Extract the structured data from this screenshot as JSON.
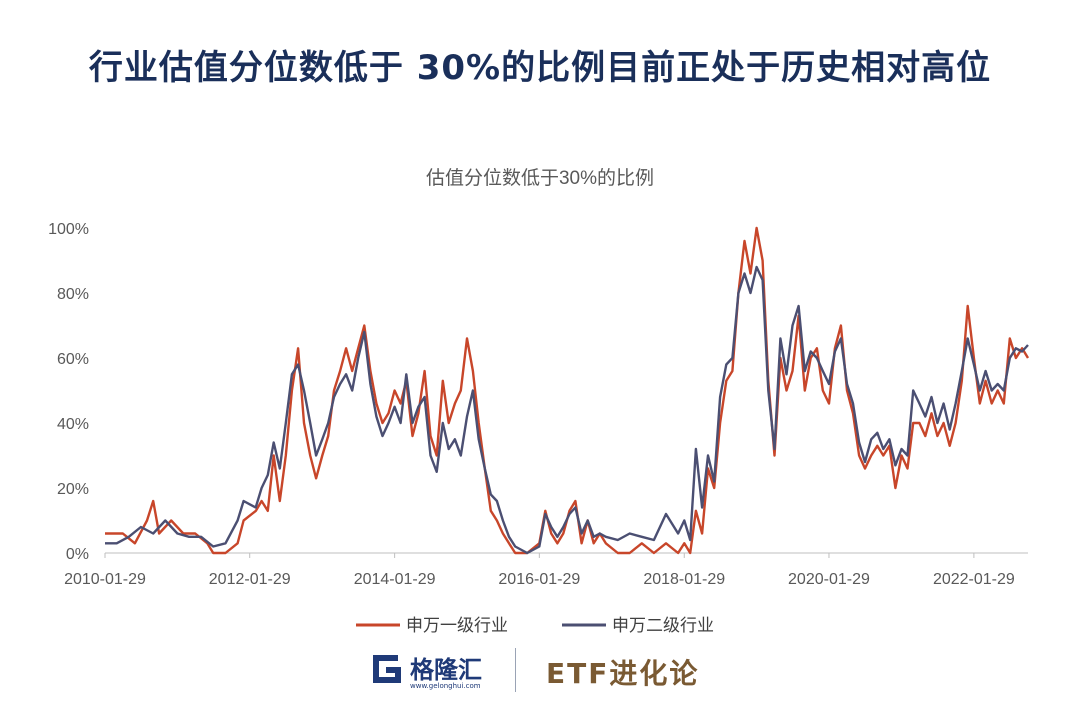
{
  "headline": "行业估值分位数低于 30%的比例目前正处于历史相对高位",
  "footer": {
    "logo_text": "格隆汇",
    "logo_url": "www.gelonghui.com",
    "brand": "ETF进化论"
  },
  "colors": {
    "series1": "#c8462a",
    "series2": "#4b4f72",
    "headline": "#1a2f5a"
  },
  "chart_data": {
    "type": "line",
    "title": "估值分位数低于30%的比例",
    "xlabel": "",
    "ylabel": "",
    "ylim": [
      0,
      100
    ],
    "y_ticks": [
      "0%",
      "20%",
      "40%",
      "60%",
      "80%",
      "100%"
    ],
    "x_ticks": [
      "2010-01-29",
      "2012-01-29",
      "2014-01-29",
      "2016-01-29",
      "2018-01-29",
      "2020-01-29",
      "2022-01-29"
    ],
    "xlim": [
      "2010-01-29",
      "2022-10-29"
    ],
    "grid": false,
    "legend_position": "bottom",
    "series": [
      {
        "name": "申万一级行业",
        "color": "#c8462a",
        "points": [
          [
            "2010-01-29",
            6
          ],
          [
            "2010-04-29",
            6
          ],
          [
            "2010-06-29",
            3
          ],
          [
            "2010-08-29",
            10
          ],
          [
            "2010-09-29",
            16
          ],
          [
            "2010-10-29",
            6
          ],
          [
            "2010-12-29",
            10
          ],
          [
            "2011-02-28",
            6
          ],
          [
            "2011-04-29",
            6
          ],
          [
            "2011-06-29",
            3
          ],
          [
            "2011-07-29",
            0
          ],
          [
            "2011-09-29",
            0
          ],
          [
            "2011-11-29",
            3
          ],
          [
            "2011-12-29",
            10
          ],
          [
            "2012-02-29",
            13
          ],
          [
            "2012-03-29",
            16
          ],
          [
            "2012-04-29",
            13
          ],
          [
            "2012-05-29",
            30
          ],
          [
            "2012-06-29",
            16
          ],
          [
            "2012-07-29",
            30
          ],
          [
            "2012-08-29",
            50
          ],
          [
            "2012-09-29",
            63
          ],
          [
            "2012-10-29",
            40
          ],
          [
            "2012-11-29",
            30
          ],
          [
            "2012-12-29",
            23
          ],
          [
            "2013-01-29",
            30
          ],
          [
            "2013-02-28",
            36
          ],
          [
            "2013-03-29",
            50
          ],
          [
            "2013-04-29",
            56
          ],
          [
            "2013-05-29",
            63
          ],
          [
            "2013-06-29",
            56
          ],
          [
            "2013-07-29",
            63
          ],
          [
            "2013-08-29",
            70
          ],
          [
            "2013-09-29",
            56
          ],
          [
            "2013-10-29",
            46
          ],
          [
            "2013-11-29",
            40
          ],
          [
            "2013-12-29",
            43
          ],
          [
            "2014-01-29",
            50
          ],
          [
            "2014-02-28",
            46
          ],
          [
            "2014-03-29",
            53
          ],
          [
            "2014-04-29",
            36
          ],
          [
            "2014-05-29",
            43
          ],
          [
            "2014-06-29",
            56
          ],
          [
            "2014-07-29",
            36
          ],
          [
            "2014-08-29",
            30
          ],
          [
            "2014-09-29",
            53
          ],
          [
            "2014-10-29",
            40
          ],
          [
            "2014-11-29",
            46
          ],
          [
            "2014-12-29",
            50
          ],
          [
            "2015-01-29",
            66
          ],
          [
            "2015-02-28",
            56
          ],
          [
            "2015-03-29",
            40
          ],
          [
            "2015-04-29",
            26
          ],
          [
            "2015-05-29",
            13
          ],
          [
            "2015-06-29",
            10
          ],
          [
            "2015-07-29",
            6
          ],
          [
            "2015-08-29",
            3
          ],
          [
            "2015-09-29",
            0
          ],
          [
            "2015-11-29",
            0
          ],
          [
            "2016-01-29",
            3
          ],
          [
            "2016-02-28",
            13
          ],
          [
            "2016-03-29",
            6
          ],
          [
            "2016-04-29",
            3
          ],
          [
            "2016-05-29",
            6
          ],
          [
            "2016-06-29",
            13
          ],
          [
            "2016-07-29",
            16
          ],
          [
            "2016-08-29",
            3
          ],
          [
            "2016-09-29",
            10
          ],
          [
            "2016-10-29",
            3
          ],
          [
            "2016-11-29",
            6
          ],
          [
            "2016-12-29",
            3
          ],
          [
            "2017-02-28",
            0
          ],
          [
            "2017-04-29",
            0
          ],
          [
            "2017-06-29",
            3
          ],
          [
            "2017-08-29",
            0
          ],
          [
            "2017-10-29",
            3
          ],
          [
            "2017-12-29",
            0
          ],
          [
            "2018-01-29",
            3
          ],
          [
            "2018-02-28",
            0
          ],
          [
            "2018-03-29",
            13
          ],
          [
            "2018-04-29",
            6
          ],
          [
            "2018-05-29",
            26
          ],
          [
            "2018-06-29",
            20
          ],
          [
            "2018-07-29",
            40
          ],
          [
            "2018-08-29",
            53
          ],
          [
            "2018-09-29",
            56
          ],
          [
            "2018-10-29",
            80
          ],
          [
            "2018-11-29",
            96
          ],
          [
            "2018-12-29",
            86
          ],
          [
            "2019-01-29",
            100
          ],
          [
            "2019-02-28",
            90
          ],
          [
            "2019-03-29",
            53
          ],
          [
            "2019-04-29",
            30
          ],
          [
            "2019-05-29",
            60
          ],
          [
            "2019-06-29",
            50
          ],
          [
            "2019-07-29",
            56
          ],
          [
            "2019-08-29",
            73
          ],
          [
            "2019-09-29",
            50
          ],
          [
            "2019-10-29",
            60
          ],
          [
            "2019-11-29",
            63
          ],
          [
            "2019-12-29",
            50
          ],
          [
            "2020-01-29",
            46
          ],
          [
            "2020-02-28",
            63
          ],
          [
            "2020-03-29",
            70
          ],
          [
            "2020-04-29",
            50
          ],
          [
            "2020-05-29",
            43
          ],
          [
            "2020-06-29",
            30
          ],
          [
            "2020-07-29",
            26
          ],
          [
            "2020-08-29",
            30
          ],
          [
            "2020-09-29",
            33
          ],
          [
            "2020-10-29",
            30
          ],
          [
            "2020-11-29",
            33
          ],
          [
            "2020-12-29",
            20
          ],
          [
            "2021-01-29",
            30
          ],
          [
            "2021-02-28",
            26
          ],
          [
            "2021-03-29",
            40
          ],
          [
            "2021-04-29",
            40
          ],
          [
            "2021-05-29",
            36
          ],
          [
            "2021-06-29",
            43
          ],
          [
            "2021-07-29",
            36
          ],
          [
            "2021-08-29",
            40
          ],
          [
            "2021-09-29",
            33
          ],
          [
            "2021-10-29",
            40
          ],
          [
            "2021-11-29",
            53
          ],
          [
            "2021-12-29",
            76
          ],
          [
            "2022-01-29",
            60
          ],
          [
            "2022-02-28",
            46
          ],
          [
            "2022-03-29",
            53
          ],
          [
            "2022-04-29",
            46
          ],
          [
            "2022-05-29",
            50
          ],
          [
            "2022-06-29",
            46
          ],
          [
            "2022-07-29",
            66
          ],
          [
            "2022-08-29",
            60
          ],
          [
            "2022-09-29",
            63
          ],
          [
            "2022-10-29",
            60
          ]
        ]
      },
      {
        "name": "申万二级行业",
        "color": "#4b4f72",
        "points": [
          [
            "2010-01-29",
            3
          ],
          [
            "2010-03-29",
            3
          ],
          [
            "2010-05-29",
            5
          ],
          [
            "2010-07-29",
            8
          ],
          [
            "2010-09-29",
            6
          ],
          [
            "2010-11-29",
            10
          ],
          [
            "2011-01-29",
            6
          ],
          [
            "2011-03-29",
            5
          ],
          [
            "2011-05-29",
            5
          ],
          [
            "2011-07-29",
            2
          ],
          [
            "2011-09-29",
            3
          ],
          [
            "2011-11-29",
            10
          ],
          [
            "2011-12-29",
            16
          ],
          [
            "2012-01-29",
            15
          ],
          [
            "2012-02-28",
            14
          ],
          [
            "2012-03-29",
            20
          ],
          [
            "2012-04-29",
            24
          ],
          [
            "2012-05-29",
            34
          ],
          [
            "2012-06-29",
            26
          ],
          [
            "2012-07-29",
            40
          ],
          [
            "2012-08-29",
            55
          ],
          [
            "2012-09-29",
            58
          ],
          [
            "2012-10-29",
            50
          ],
          [
            "2012-11-29",
            40
          ],
          [
            "2012-12-29",
            30
          ],
          [
            "2013-01-29",
            35
          ],
          [
            "2013-02-28",
            40
          ],
          [
            "2013-03-29",
            48
          ],
          [
            "2013-04-29",
            52
          ],
          [
            "2013-05-29",
            55
          ],
          [
            "2013-06-29",
            50
          ],
          [
            "2013-07-29",
            60
          ],
          [
            "2013-08-29",
            68
          ],
          [
            "2013-09-29",
            52
          ],
          [
            "2013-10-29",
            42
          ],
          [
            "2013-11-29",
            36
          ],
          [
            "2013-12-29",
            40
          ],
          [
            "2014-01-29",
            45
          ],
          [
            "2014-02-28",
            40
          ],
          [
            "2014-03-29",
            55
          ],
          [
            "2014-04-29",
            40
          ],
          [
            "2014-05-29",
            45
          ],
          [
            "2014-06-29",
            48
          ],
          [
            "2014-07-29",
            30
          ],
          [
            "2014-08-29",
            25
          ],
          [
            "2014-09-29",
            40
          ],
          [
            "2014-10-29",
            32
          ],
          [
            "2014-11-29",
            35
          ],
          [
            "2014-12-29",
            30
          ],
          [
            "2015-01-29",
            42
          ],
          [
            "2015-02-28",
            50
          ],
          [
            "2015-03-29",
            35
          ],
          [
            "2015-04-29",
            26
          ],
          [
            "2015-05-29",
            18
          ],
          [
            "2015-06-29",
            16
          ],
          [
            "2015-07-29",
            10
          ],
          [
            "2015-08-29",
            5
          ],
          [
            "2015-09-29",
            2
          ],
          [
            "2015-11-29",
            0
          ],
          [
            "2016-01-29",
            2
          ],
          [
            "2016-02-28",
            12
          ],
          [
            "2016-03-29",
            8
          ],
          [
            "2016-04-29",
            5
          ],
          [
            "2016-05-29",
            8
          ],
          [
            "2016-06-29",
            12
          ],
          [
            "2016-07-29",
            14
          ],
          [
            "2016-08-29",
            6
          ],
          [
            "2016-09-29",
            10
          ],
          [
            "2016-10-29",
            5
          ],
          [
            "2016-11-29",
            6
          ],
          [
            "2016-12-29",
            5
          ],
          [
            "2017-02-28",
            4
          ],
          [
            "2017-04-29",
            6
          ],
          [
            "2017-06-29",
            5
          ],
          [
            "2017-08-29",
            4
          ],
          [
            "2017-10-29",
            12
          ],
          [
            "2017-12-29",
            6
          ],
          [
            "2018-01-29",
            10
          ],
          [
            "2018-02-28",
            4
          ],
          [
            "2018-03-29",
            32
          ],
          [
            "2018-04-29",
            14
          ],
          [
            "2018-05-29",
            30
          ],
          [
            "2018-06-29",
            22
          ],
          [
            "2018-07-29",
            48
          ],
          [
            "2018-08-29",
            58
          ],
          [
            "2018-09-29",
            60
          ],
          [
            "2018-10-29",
            80
          ],
          [
            "2018-11-29",
            86
          ],
          [
            "2018-12-29",
            80
          ],
          [
            "2019-01-29",
            88
          ],
          [
            "2019-02-28",
            84
          ],
          [
            "2019-03-29",
            50
          ],
          [
            "2019-04-29",
            32
          ],
          [
            "2019-05-29",
            66
          ],
          [
            "2019-06-29",
            55
          ],
          [
            "2019-07-29",
            70
          ],
          [
            "2019-08-29",
            76
          ],
          [
            "2019-09-29",
            56
          ],
          [
            "2019-10-29",
            62
          ],
          [
            "2019-11-29",
            60
          ],
          [
            "2019-12-29",
            56
          ],
          [
            "2020-01-29",
            52
          ],
          [
            "2020-02-28",
            62
          ],
          [
            "2020-03-29",
            66
          ],
          [
            "2020-04-29",
            52
          ],
          [
            "2020-05-29",
            46
          ],
          [
            "2020-06-29",
            34
          ],
          [
            "2020-07-29",
            28
          ],
          [
            "2020-08-29",
            35
          ],
          [
            "2020-09-29",
            37
          ],
          [
            "2020-10-29",
            32
          ],
          [
            "2020-11-29",
            35
          ],
          [
            "2020-12-29",
            27
          ],
          [
            "2021-01-29",
            32
          ],
          [
            "2021-02-28",
            30
          ],
          [
            "2021-03-29",
            50
          ],
          [
            "2021-04-29",
            46
          ],
          [
            "2021-05-29",
            42
          ],
          [
            "2021-06-29",
            48
          ],
          [
            "2021-07-29",
            40
          ],
          [
            "2021-08-29",
            46
          ],
          [
            "2021-09-29",
            38
          ],
          [
            "2021-10-29",
            46
          ],
          [
            "2021-11-29",
            56
          ],
          [
            "2021-12-29",
            66
          ],
          [
            "2022-01-29",
            58
          ],
          [
            "2022-02-28",
            50
          ],
          [
            "2022-03-29",
            56
          ],
          [
            "2022-04-29",
            50
          ],
          [
            "2022-05-29",
            52
          ],
          [
            "2022-06-29",
            50
          ],
          [
            "2022-07-29",
            60
          ],
          [
            "2022-08-29",
            63
          ],
          [
            "2022-09-29",
            62
          ],
          [
            "2022-10-29",
            64
          ]
        ]
      }
    ]
  }
}
